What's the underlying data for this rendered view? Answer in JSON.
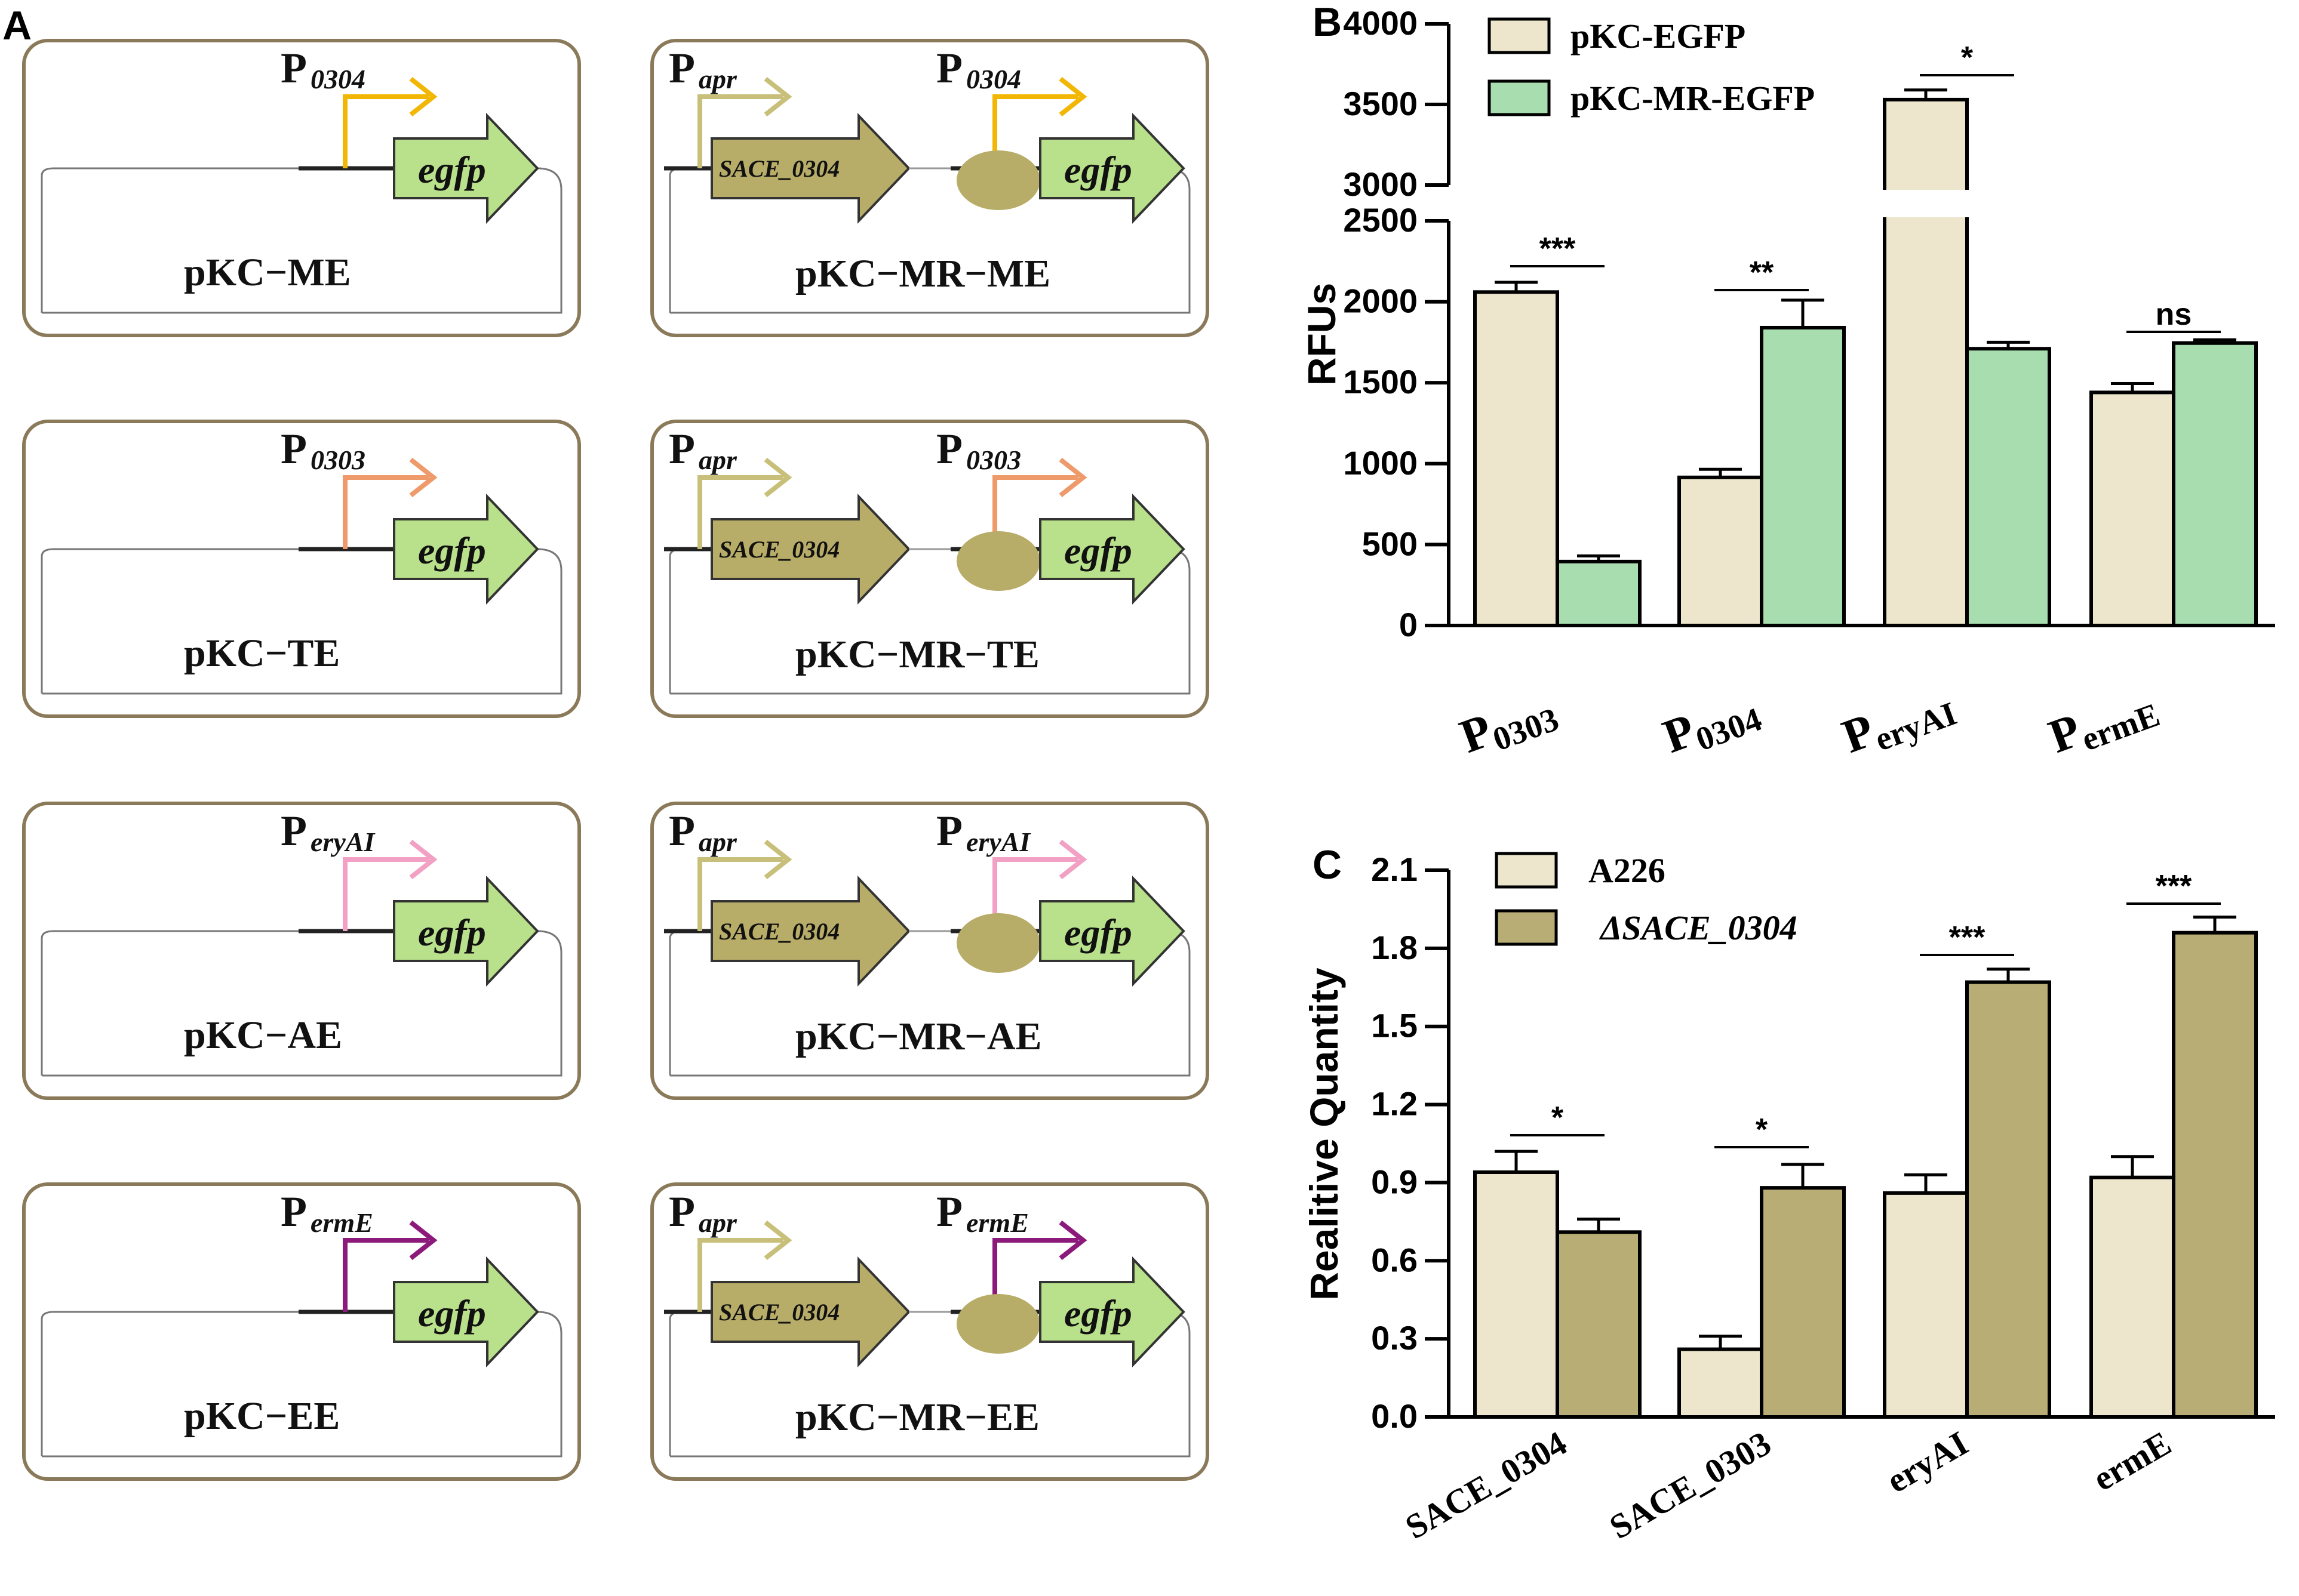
{
  "panel_labels": {
    "a": "A",
    "b": "B",
    "c": "C"
  },
  "panel_a": {
    "promoter_prefix": "P",
    "apr_label": "apr",
    "gene_egfp": "egfp",
    "gene_sace": "SACE_0304",
    "constructs": [
      {
        "left_name": "pKC−ME",
        "right_name": "pKC−MR−ME",
        "promoter": "0304",
        "color": "#f2b705"
      },
      {
        "left_name": "pKC−TE",
        "right_name": "pKC−MR−TE",
        "promoter": "0303",
        "color": "#ee9a6b"
      },
      {
        "left_name": "pKC−AE",
        "right_name": "pKC−MR−AE",
        "promoter": "eryAI",
        "color": "#f2a0c4"
      },
      {
        "left_name": "pKC−EE",
        "right_name": "pKC−MR−EE",
        "promoter": "ermE",
        "color": "#8b1a7a"
      }
    ],
    "colors": {
      "apr_arrow": "#c8c07a",
      "egfp_fill": "#b9e08a",
      "sace_fill": "#b8ad68",
      "repressor_oval": "#b8ad68",
      "box_border": "#8a7a5a"
    }
  },
  "chart_data": [
    {
      "panel": "B",
      "type": "bar",
      "ylabel": "RFUs",
      "categories": [
        "P0303",
        "P0304",
        "PeryAI",
        "PermE"
      ],
      "category_display": [
        [
          "P",
          "0303"
        ],
        [
          "P",
          "0304"
        ],
        [
          "P",
          "eryAI"
        ],
        [
          "P",
          "ermE"
        ]
      ],
      "y_axis_break": {
        "lower_range": [
          0,
          2500
        ],
        "upper_range": [
          3000,
          4000
        ]
      },
      "lower_ticks": [
        "0",
        "500",
        "1000",
        "1500",
        "2000",
        "2500"
      ],
      "upper_ticks": [
        "3000",
        "3500",
        "4000"
      ],
      "series": [
        {
          "name": "pKC-EGFP",
          "color": "#ede6cc",
          "values": [
            2060,
            915,
            3530,
            1440
          ],
          "errors": [
            60,
            50,
            60,
            55
          ]
        },
        {
          "name": "pKC-MR-EGFP",
          "color": "#a8ddb0",
          "values": [
            395,
            1840,
            1710,
            1745
          ],
          "errors": [
            35,
            170,
            40,
            20
          ]
        }
      ],
      "significance": [
        "***",
        "**",
        "*",
        "ns"
      ]
    },
    {
      "panel": "C",
      "type": "bar",
      "ylabel": "Realitive Quantity",
      "categories": [
        "SACE_0304",
        "SACE_0303",
        "eryAI",
        "ermE"
      ],
      "ylim": [
        0,
        2.1
      ],
      "ticks": [
        "0.0",
        "0.3",
        "0.6",
        "0.9",
        "1.2",
        "1.5",
        "1.8",
        "2.1"
      ],
      "series": [
        {
          "name": "A226",
          "color": "#ede6cc",
          "values": [
            0.94,
            0.26,
            0.86,
            0.92
          ],
          "errors": [
            0.08,
            0.05,
            0.07,
            0.08
          ]
        },
        {
          "name": "ΔSACE_0304",
          "color": "#b8ad74",
          "values": [
            0.71,
            0.88,
            1.67,
            1.86
          ],
          "errors": [
            0.05,
            0.09,
            0.05,
            0.06
          ]
        }
      ],
      "significance": [
        "*",
        "*",
        "***",
        "***"
      ]
    }
  ]
}
